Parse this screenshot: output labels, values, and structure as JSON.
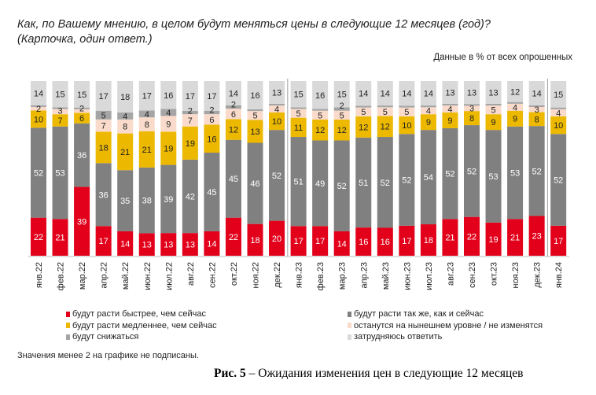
{
  "chart_data": {
    "type": "bar",
    "stacked": true,
    "title": "Как, по Вашему мнению, в целом будут меняться цены в следующие 12 месяцев (год)?",
    "subtitle": "(Карточка, один ответ.)",
    "unit_note": "Данные в % от всех опрошенных",
    "categories": [
      "янв.22",
      "фев.22",
      "мар.22",
      "апр.22",
      "май.22",
      "июн.22",
      "июл.22",
      "авг.22",
      "сен.22",
      "окт.22",
      "ноя.22",
      "дек.22",
      "янв.23",
      "фев.23",
      "мар.23",
      "апр.23",
      "май.23",
      "июн.23",
      "июл.23",
      "авг.23",
      "сен.23",
      "окт.23",
      "ноя.23",
      "дек.23",
      "янв.24"
    ],
    "series": [
      {
        "name": "будут расти быстрее, чем сейчас",
        "color": "#e2001a",
        "label_color": "#ffffff",
        "values": [
          22,
          21,
          39,
          17,
          14,
          13,
          13,
          13,
          14,
          22,
          18,
          20,
          17,
          17,
          14,
          16,
          16,
          17,
          18,
          21,
          22,
          19,
          21,
          23,
          17
        ]
      },
      {
        "name": "будут расти так же, как и сейчас",
        "color": "#808080",
        "label_color": "#ffffff",
        "values": [
          52,
          53,
          36,
          36,
          35,
          38,
          39,
          42,
          45,
          45,
          46,
          52,
          51,
          49,
          52,
          51,
          52,
          52,
          54,
          52,
          52,
          53,
          53,
          52,
          52
        ]
      },
      {
        "name": "будут расти медленнее, чем сейчас",
        "color": "#ecb800",
        "label_color": "#222222",
        "values": [
          10,
          7,
          6,
          18,
          21,
          21,
          19,
          19,
          16,
          12,
          13,
          10,
          11,
          12,
          12,
          12,
          12,
          10,
          9,
          9,
          8,
          9,
          9,
          8,
          10
        ]
      },
      {
        "name": "останутся на нынешнем уровне / не изменятся",
        "color": "#fadbcb",
        "label_color": "#222222",
        "values": [
          2,
          3,
          2,
          7,
          8,
          8,
          9,
          7,
          6,
          6,
          5,
          4,
          5,
          5,
          5,
          5,
          5,
          5,
          4,
          4,
          3,
          5,
          4,
          3,
          4
        ]
      },
      {
        "name": "будут снижаться",
        "color": "#a5a5a5",
        "label_color": "#222222",
        "values": [
          1,
          1,
          1,
          5,
          4,
          4,
          4,
          2,
          2,
          2,
          1,
          1,
          1,
          1,
          2,
          1,
          1,
          1,
          1,
          1,
          1,
          1,
          1,
          1,
          1
        ]
      },
      {
        "name": "затрудняюсь ответить",
        "color": "#d9d9d9",
        "label_color": "#222222",
        "values": [
          14,
          15,
          15,
          17,
          18,
          17,
          16,
          17,
          17,
          14,
          16,
          13,
          15,
          16,
          15,
          14,
          14,
          14,
          14,
          13,
          13,
          13,
          12,
          14,
          15
        ]
      }
    ],
    "label_threshold": 2,
    "footnote": "Значения менее 2 на графике не подписаны.",
    "ylim": [
      0,
      100
    ],
    "grid": false,
    "legend_position": "bottom"
  },
  "caption": {
    "bold": "Рис. 5",
    "text": " – Ожидания изменения цен в следующие 12 месяцев"
  }
}
